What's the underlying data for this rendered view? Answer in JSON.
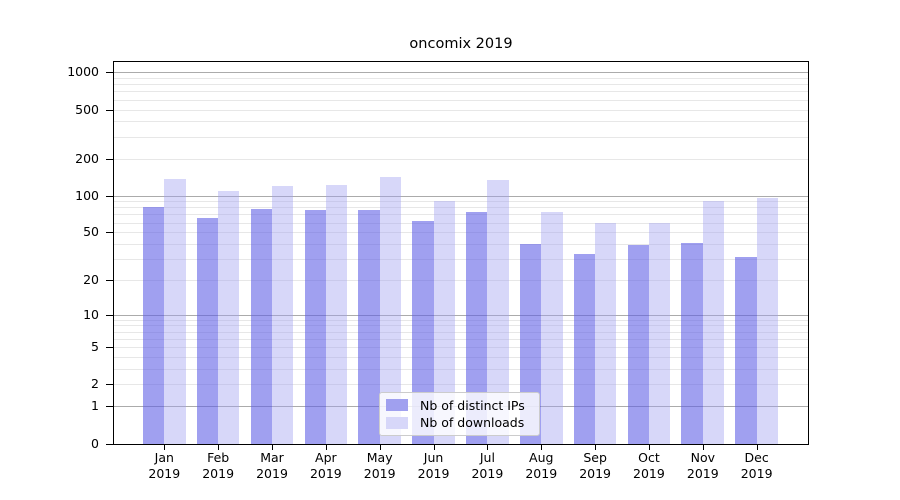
{
  "figure": {
    "title": "oncomix 2019"
  },
  "chart_data": {
    "type": "bar",
    "title": "oncomix 2019",
    "categories": [
      "Jan",
      "Feb",
      "Mar",
      "Apr",
      "May",
      "Jun",
      "Jul",
      "Aug",
      "Sep",
      "Oct",
      "Nov",
      "Dec"
    ],
    "year": "2019",
    "series": [
      {
        "name": "Nb of distinct IPs",
        "legend_color": "#a0a0ef",
        "fill": "rgba(91,91,229,0.58)",
        "values": [
          81,
          65,
          78,
          76,
          76,
          62,
          73,
          40,
          33,
          39,
          41,
          31
        ]
      },
      {
        "name": "Nb of downloads",
        "legend_color": "#d7d7f9",
        "fill": "rgba(160,160,241,0.42)",
        "values": [
          136,
          108,
          120,
          123,
          143,
          91,
          133,
          73,
          60,
          60,
          91,
          95
        ]
      }
    ],
    "yscale": "log1p",
    "ylim": [
      0,
      1270
    ],
    "yticks": [
      0,
      1,
      2,
      5,
      10,
      20,
      50,
      100,
      200,
      500,
      1000
    ],
    "ytick_major_gridlines": [
      1,
      10,
      100,
      1000
    ],
    "ytick_minor_gridlines": [
      2,
      3,
      4,
      5,
      6,
      7,
      8,
      9,
      20,
      30,
      40,
      50,
      60,
      70,
      80,
      90,
      200,
      300,
      400,
      500,
      600,
      700,
      800,
      900
    ],
    "grid": "on",
    "legend_position": "lower center",
    "colors": {
      "major_grid": "#ababab",
      "minor_grid": "#e7e7e7",
      "axis": "#000000"
    }
  }
}
